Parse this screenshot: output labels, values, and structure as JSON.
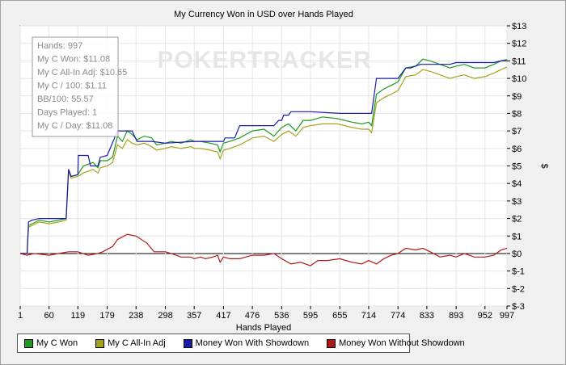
{
  "chart_data": {
    "type": "line",
    "title": "My Currency Won in USD over Hands Played",
    "xlabel": "Hands Played",
    "ylabel": "$",
    "xlim": [
      1,
      997
    ],
    "ylim": [
      -3,
      13
    ],
    "x_ticks": [
      1,
      60,
      119,
      179,
      238,
      298,
      357,
      417,
      476,
      536,
      595,
      655,
      714,
      774,
      833,
      893,
      952,
      997
    ],
    "y_ticks": [
      "$13",
      "$12",
      "$11",
      "$10",
      "$9",
      "$8",
      "$7",
      "$6",
      "$5",
      "$4",
      "$3",
      "$2",
      "$1",
      "$0",
      "$-1",
      "$-2",
      "$-3"
    ],
    "y_tick_values": [
      13,
      12,
      11,
      10,
      9,
      8,
      7,
      6,
      5,
      4,
      3,
      2,
      1,
      0,
      -1,
      -2,
      -3
    ],
    "grid": true,
    "watermark": "POKERTRACKER",
    "stats": [
      "Hands: 997",
      "My C Won: $11.08",
      "My C All-In Adj: $10.65",
      "My C / 100: $1.11",
      "BB/100: 55.57",
      "Days Played: 1",
      "My C / Day: $11.08"
    ],
    "series": [
      {
        "name": "My C Won",
        "color": "#1f9a1f",
        "points": [
          [
            1,
            0
          ],
          [
            15,
            0
          ],
          [
            18,
            1.6
          ],
          [
            25,
            1.7
          ],
          [
            40,
            1.9
          ],
          [
            60,
            1.8
          ],
          [
            80,
            1.9
          ],
          [
            95,
            2.0
          ],
          [
            100,
            4.8
          ],
          [
            105,
            4.4
          ],
          [
            119,
            4.5
          ],
          [
            130,
            5.0
          ],
          [
            150,
            5.2
          ],
          [
            160,
            4.9
          ],
          [
            165,
            5.3
          ],
          [
            179,
            5.3
          ],
          [
            190,
            5.5
          ],
          [
            200,
            6.7
          ],
          [
            210,
            6.4
          ],
          [
            220,
            7.0
          ],
          [
            230,
            6.8
          ],
          [
            240,
            6.5
          ],
          [
            255,
            6.7
          ],
          [
            270,
            6.6
          ],
          [
            280,
            6.2
          ],
          [
            298,
            6.3
          ],
          [
            310,
            6.4
          ],
          [
            330,
            6.3
          ],
          [
            350,
            6.5
          ],
          [
            357,
            6.4
          ],
          [
            370,
            6.4
          ],
          [
            390,
            6.3
          ],
          [
            405,
            6.2
          ],
          [
            410,
            5.8
          ],
          [
            417,
            6.3
          ],
          [
            430,
            6.4
          ],
          [
            450,
            6.6
          ],
          [
            476,
            7.0
          ],
          [
            500,
            7.1
          ],
          [
            520,
            6.7
          ],
          [
            536,
            7.2
          ],
          [
            550,
            7.4
          ],
          [
            565,
            7.0
          ],
          [
            580,
            7.6
          ],
          [
            595,
            7.6
          ],
          [
            620,
            7.8
          ],
          [
            650,
            7.7
          ],
          [
            680,
            7.5
          ],
          [
            700,
            7.4
          ],
          [
            714,
            7.5
          ],
          [
            720,
            7.3
          ],
          [
            730,
            9.1
          ],
          [
            745,
            9.4
          ],
          [
            760,
            9.6
          ],
          [
            774,
            9.8
          ],
          [
            790,
            10.6
          ],
          [
            810,
            10.7
          ],
          [
            825,
            11.1
          ],
          [
            840,
            11.0
          ],
          [
            860,
            10.8
          ],
          [
            880,
            10.6
          ],
          [
            893,
            10.7
          ],
          [
            910,
            10.8
          ],
          [
            930,
            10.6
          ],
          [
            952,
            10.6
          ],
          [
            970,
            10.8
          ],
          [
            985,
            11.0
          ],
          [
            997,
            11.08
          ]
        ]
      },
      {
        "name": "My C All-In Adj",
        "color": "#a3a31a",
        "points": [
          [
            1,
            0
          ],
          [
            15,
            0
          ],
          [
            18,
            1.5
          ],
          [
            25,
            1.6
          ],
          [
            40,
            1.8
          ],
          [
            60,
            1.7
          ],
          [
            80,
            1.8
          ],
          [
            95,
            1.9
          ],
          [
            100,
            4.7
          ],
          [
            105,
            4.3
          ],
          [
            119,
            4.4
          ],
          [
            130,
            4.6
          ],
          [
            150,
            4.8
          ],
          [
            160,
            4.6
          ],
          [
            165,
            4.9
          ],
          [
            179,
            5.0
          ],
          [
            190,
            5.2
          ],
          [
            200,
            6.2
          ],
          [
            210,
            6.0
          ],
          [
            220,
            6.5
          ],
          [
            230,
            6.3
          ],
          [
            240,
            6.2
          ],
          [
            255,
            6.3
          ],
          [
            270,
            6.1
          ],
          [
            280,
            5.9
          ],
          [
            298,
            6.0
          ],
          [
            310,
            6.1
          ],
          [
            330,
            6.0
          ],
          [
            350,
            6.1
          ],
          [
            357,
            6.0
          ],
          [
            370,
            6.0
          ],
          [
            390,
            5.9
          ],
          [
            405,
            5.8
          ],
          [
            410,
            5.4
          ],
          [
            417,
            5.9
          ],
          [
            430,
            6.0
          ],
          [
            450,
            6.2
          ],
          [
            476,
            6.6
          ],
          [
            500,
            6.7
          ],
          [
            520,
            6.4
          ],
          [
            536,
            6.8
          ],
          [
            550,
            7.0
          ],
          [
            565,
            6.7
          ],
          [
            580,
            7.2
          ],
          [
            595,
            7.3
          ],
          [
            620,
            7.4
          ],
          [
            650,
            7.4
          ],
          [
            680,
            7.2
          ],
          [
            700,
            7.1
          ],
          [
            714,
            7.1
          ],
          [
            720,
            6.9
          ],
          [
            730,
            8.6
          ],
          [
            745,
            8.9
          ],
          [
            760,
            9.1
          ],
          [
            774,
            9.3
          ],
          [
            790,
            10.1
          ],
          [
            810,
            10.2
          ],
          [
            825,
            10.5
          ],
          [
            840,
            10.4
          ],
          [
            860,
            10.2
          ],
          [
            880,
            10.0
          ],
          [
            893,
            10.1
          ],
          [
            910,
            10.2
          ],
          [
            930,
            10.0
          ],
          [
            952,
            10.1
          ],
          [
            970,
            10.3
          ],
          [
            985,
            10.5
          ],
          [
            997,
            10.65
          ]
        ]
      },
      {
        "name": "Money Won With Showdown",
        "color": "#1a1aa8",
        "points": [
          [
            1,
            0
          ],
          [
            15,
            0
          ],
          [
            18,
            1.8
          ],
          [
            25,
            1.9
          ],
          [
            40,
            2.0
          ],
          [
            60,
            2.0
          ],
          [
            80,
            2.0
          ],
          [
            95,
            2.0
          ],
          [
            100,
            4.8
          ],
          [
            105,
            4.4
          ],
          [
            119,
            4.5
          ],
          [
            120,
            5.6
          ],
          [
            140,
            5.6
          ],
          [
            145,
            5.0
          ],
          [
            160,
            5.0
          ],
          [
            165,
            5.5
          ],
          [
            179,
            5.6
          ],
          [
            200,
            7.0
          ],
          [
            230,
            7.0
          ],
          [
            240,
            6.4
          ],
          [
            270,
            6.4
          ],
          [
            298,
            6.3
          ],
          [
            357,
            6.4
          ],
          [
            417,
            6.4
          ],
          [
            420,
            6.6
          ],
          [
            440,
            6.6
          ],
          [
            450,
            7.3
          ],
          [
            476,
            7.3
          ],
          [
            520,
            7.3
          ],
          [
            530,
            7.6
          ],
          [
            536,
            7.6
          ],
          [
            540,
            7.9
          ],
          [
            550,
            7.9
          ],
          [
            555,
            8.1
          ],
          [
            595,
            8.1
          ],
          [
            655,
            8.0
          ],
          [
            714,
            8.0
          ],
          [
            720,
            8.0
          ],
          [
            730,
            10.0
          ],
          [
            774,
            10.0
          ],
          [
            790,
            10.6
          ],
          [
            800,
            10.6
          ],
          [
            820,
            10.8
          ],
          [
            880,
            10.8
          ],
          [
            893,
            10.9
          ],
          [
            952,
            10.9
          ],
          [
            970,
            10.9
          ],
          [
            985,
            11.0
          ],
          [
            997,
            11.0
          ]
        ]
      },
      {
        "name": "Money Won Without Showdown",
        "color": "#b01818",
        "points": [
          [
            1,
            0
          ],
          [
            15,
            -0.1
          ],
          [
            30,
            0
          ],
          [
            60,
            -0.1
          ],
          [
            80,
            0
          ],
          [
            100,
            0.1
          ],
          [
            119,
            0.1
          ],
          [
            140,
            -0.1
          ],
          [
            160,
            0
          ],
          [
            170,
            0.1
          ],
          [
            190,
            0.4
          ],
          [
            200,
            0.8
          ],
          [
            220,
            1.1
          ],
          [
            238,
            1.0
          ],
          [
            260,
            0.6
          ],
          [
            275,
            0.1
          ],
          [
            298,
            0.1
          ],
          [
            310,
            0.0
          ],
          [
            330,
            -0.2
          ],
          [
            350,
            -0.2
          ],
          [
            357,
            -0.3
          ],
          [
            370,
            -0.2
          ],
          [
            380,
            -0.3
          ],
          [
            395,
            -0.2
          ],
          [
            405,
            -0.1
          ],
          [
            410,
            -0.5
          ],
          [
            417,
            -0.2
          ],
          [
            430,
            -0.3
          ],
          [
            450,
            -0.3
          ],
          [
            476,
            -0.1
          ],
          [
            500,
            -0.1
          ],
          [
            520,
            0.0
          ],
          [
            536,
            -0.3
          ],
          [
            555,
            -0.6
          ],
          [
            575,
            -0.5
          ],
          [
            595,
            -0.7
          ],
          [
            610,
            -0.4
          ],
          [
            630,
            -0.4
          ],
          [
            655,
            -0.3
          ],
          [
            680,
            -0.5
          ],
          [
            700,
            -0.6
          ],
          [
            714,
            -0.4
          ],
          [
            730,
            -0.6
          ],
          [
            745,
            -0.3
          ],
          [
            760,
            -0.1
          ],
          [
            774,
            0.0
          ],
          [
            790,
            0.3
          ],
          [
            810,
            0.2
          ],
          [
            825,
            0.3
          ],
          [
            840,
            0.1
          ],
          [
            860,
            -0.2
          ],
          [
            880,
            -0.1
          ],
          [
            893,
            -0.2
          ],
          [
            910,
            0.0
          ],
          [
            930,
            -0.2
          ],
          [
            952,
            -0.2
          ],
          [
            970,
            -0.1
          ],
          [
            985,
            0.2
          ],
          [
            997,
            0.3
          ]
        ]
      }
    ]
  }
}
